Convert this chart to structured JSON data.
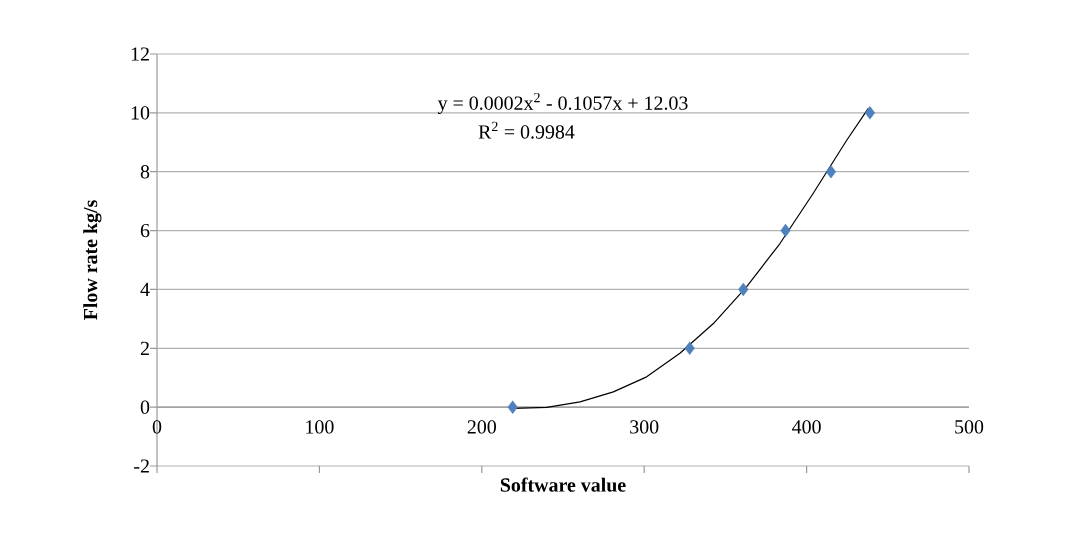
{
  "chart_data": {
    "type": "scatter",
    "xlabel": "Software value",
    "ylabel": "Flow rate kg/s",
    "annotations": [
      "y = 0.0002x$^{2}$ - 0.1057x + 12.03",
      "R$^{2}$ = 0.9984"
    ],
    "xlim": [
      0,
      500
    ],
    "ylim": [
      -2,
      12
    ],
    "xticks": [
      0,
      100,
      200,
      300,
      400,
      500
    ],
    "yticks": [
      -2,
      0,
      2,
      4,
      6,
      8,
      10,
      12
    ],
    "grid": "y",
    "series": [
      {
        "color": "#4f81bd",
        "marker": "diamond",
        "x": [
          219,
          328,
          361,
          387,
          415,
          439
        ],
        "values": [
          0,
          2,
          4,
          6,
          8,
          10
        ]
      },
      {
        "type": "line",
        "color": "#000000",
        "marker": "none",
        "line_style": "solid",
        "x": [
          219.4,
          240,
          260.5,
          281,
          301.5,
          322,
          342.6,
          363,
          383.6,
          404,
          424.7,
          438
        ],
        "values": [
          -0.04,
          -0.01,
          0.18,
          0.52,
          1.03,
          1.83,
          2.84,
          4.09,
          5.56,
          7.26,
          9.07,
          10.15
        ]
      }
    ]
  }
}
